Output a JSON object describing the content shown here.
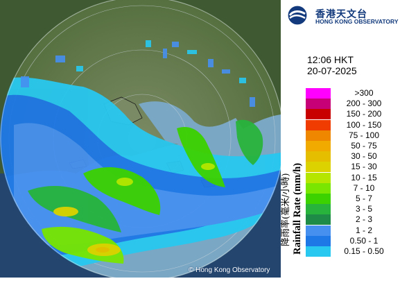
{
  "header": {
    "logo_chinese": "香港天文台",
    "logo_english": "HONG KONG OBSERVATORY",
    "time": "12:06 HKT",
    "date": "20-07-2025"
  },
  "legend": {
    "title_chinese": "降雨率(毫米/小時)",
    "title_english": "Rainfall Rate (mm/h)",
    "items": [
      {
        "label": ">300",
        "color": "#ff00ff"
      },
      {
        "label": "200 - 300",
        "color": "#c80078"
      },
      {
        "label": "150 - 200",
        "color": "#c80000"
      },
      {
        "label": "100 - 150",
        "color": "#f03c00"
      },
      {
        "label": "75 - 100",
        "color": "#f08700"
      },
      {
        "label": "50 - 75",
        "color": "#f0aa00"
      },
      {
        "label": "30 - 50",
        "color": "#e6be00"
      },
      {
        "label": "15 - 30",
        "color": "#dcd200"
      },
      {
        "label": "10 - 15",
        "color": "#b4e600"
      },
      {
        "label": "7 - 10",
        "color": "#78e600"
      },
      {
        "label": "5 - 7",
        "color": "#3cd200"
      },
      {
        "label": "3 - 5",
        "color": "#28b43c"
      },
      {
        "label": "2 - 3",
        "color": "#1e8c46"
      },
      {
        "label": "1 - 2",
        "color": "#4690f0"
      },
      {
        "label": "0.50 - 1",
        "color": "#1e78e6"
      },
      {
        "label": "0.15 - 0.50",
        "color": "#28c8f0"
      }
    ]
  },
  "footer": {
    "copyright": "© Hong Kong Observatory"
  }
}
